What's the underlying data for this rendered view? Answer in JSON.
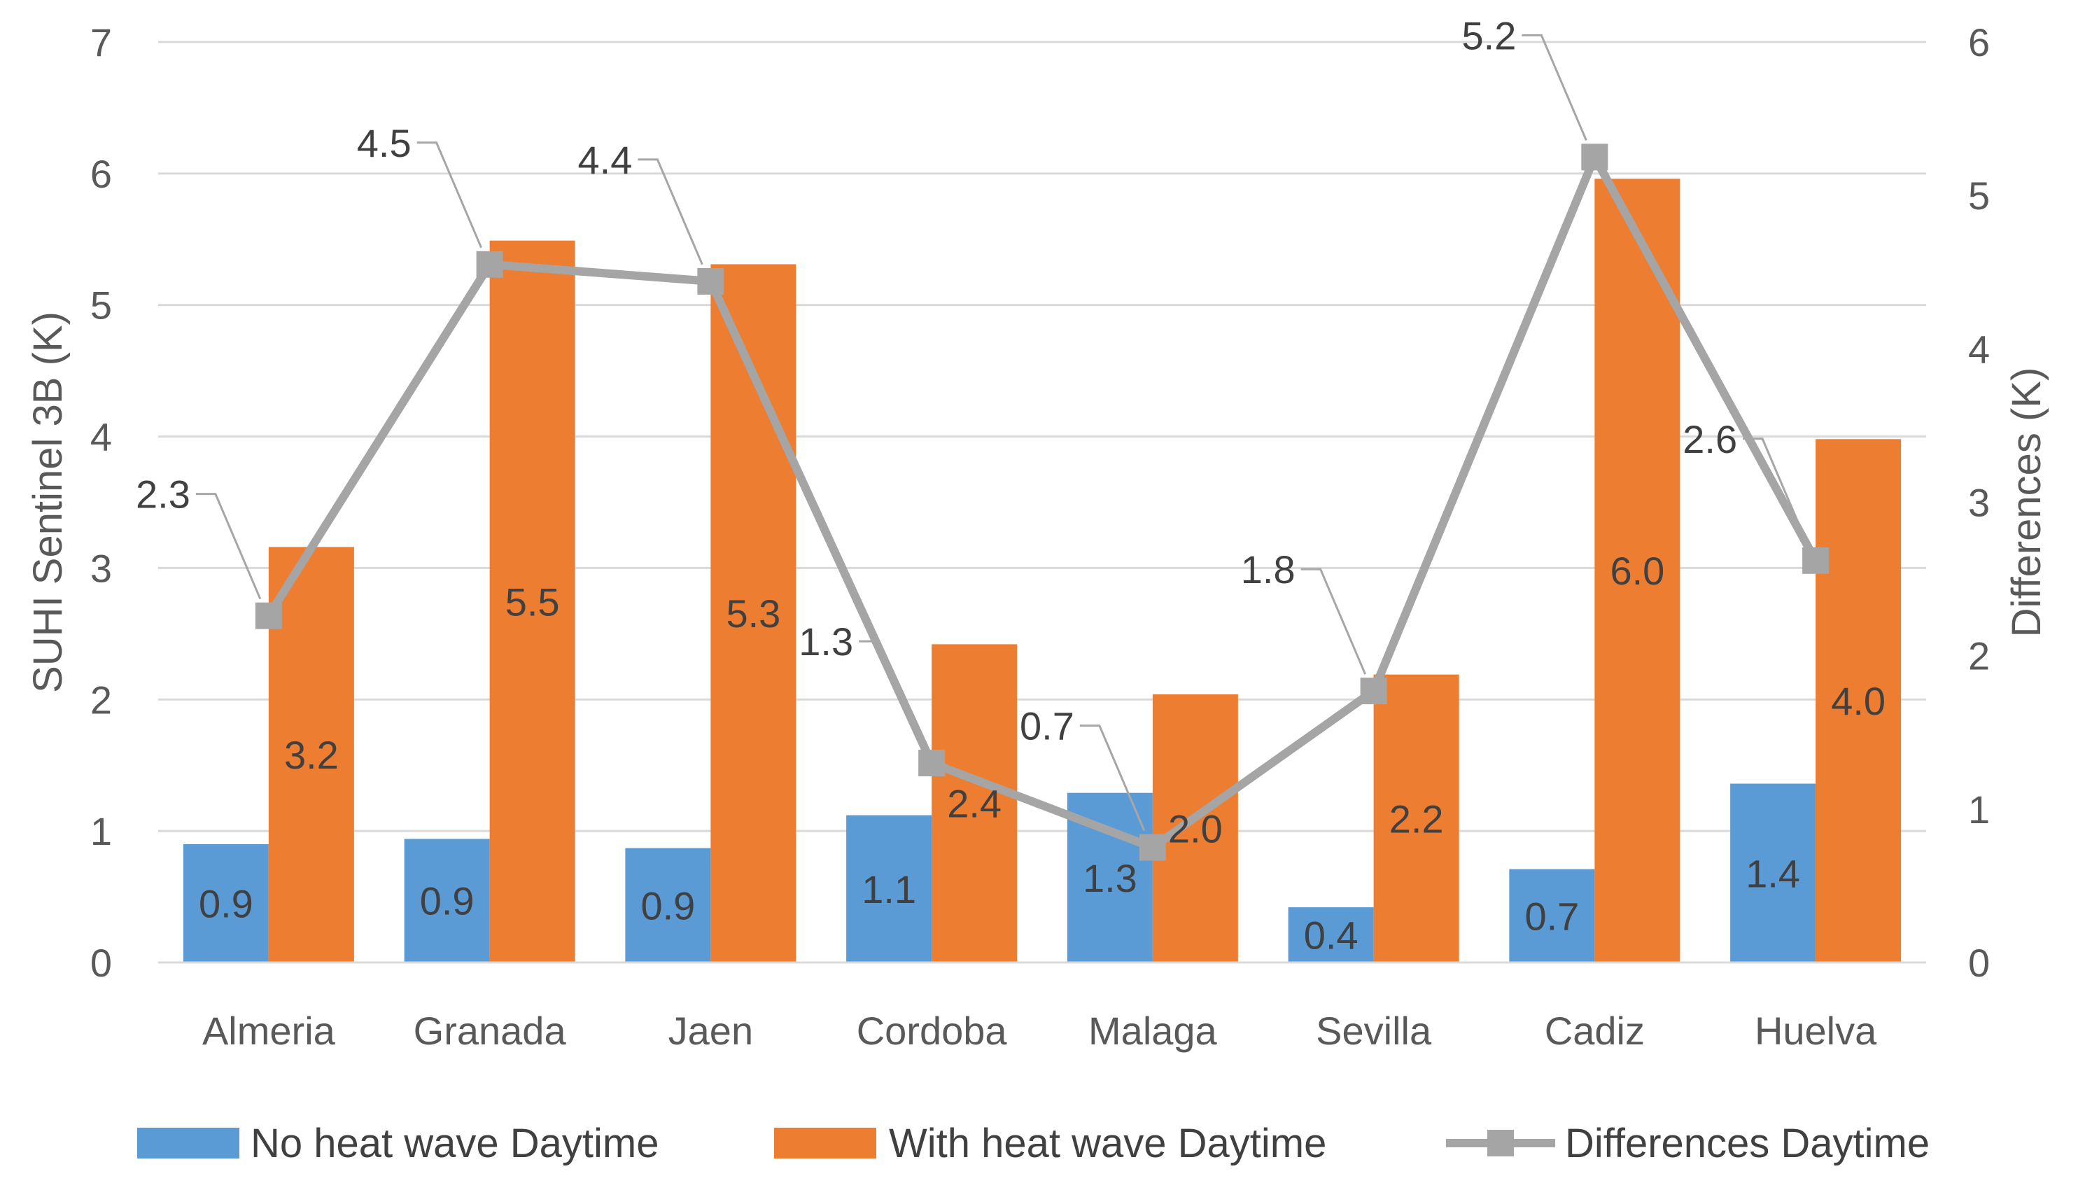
{
  "chart_data": {
    "type": "bar",
    "categories": [
      "Almeria",
      "Granada",
      "Jaen",
      "Cordoba",
      "Malaga",
      "Sevilla",
      "Cadiz",
      "Huelva"
    ],
    "series": [
      {
        "name": "No heat wave Daytime",
        "type": "bar",
        "axis": "left",
        "color": "#5B9BD5",
        "values": [
          0.9,
          0.94,
          0.87,
          1.12,
          1.29,
          0.42,
          0.71,
          1.36
        ],
        "labels": [
          "0.9",
          "0.9",
          "0.9",
          "1.1",
          "1.3",
          "0.4",
          "0.7",
          "1.4"
        ]
      },
      {
        "name": "With heat wave Daytime",
        "type": "bar",
        "axis": "left",
        "color": "#ED7D31",
        "values": [
          3.16,
          5.49,
          5.31,
          2.42,
          2.04,
          2.19,
          5.96,
          3.98
        ],
        "labels": [
          "3.2",
          "5.5",
          "5.3",
          "2.4",
          "2.0",
          "2.2",
          "6.0",
          "4.0"
        ]
      },
      {
        "name": "Differences Daytime",
        "type": "line",
        "axis": "right",
        "color": "#A5A5A5",
        "values": [
          2.26,
          4.55,
          4.44,
          1.3,
          0.75,
          1.77,
          5.25,
          2.62
        ],
        "labels": [
          "2.3",
          "4.5",
          "4.4",
          "1.3",
          "0.7",
          "1.8",
          "5.2",
          "2.6"
        ]
      }
    ],
    "ylabel": "SUHI Sentinel 3B (K)",
    "ylim": [
      0,
      7
    ],
    "yticks": [
      "0",
      "1",
      "2",
      "3",
      "4",
      "5",
      "6",
      "7"
    ],
    "y2label": "Differences (K)",
    "y2lim": [
      0,
      6
    ],
    "y2ticks": [
      "0",
      "1",
      "2",
      "3",
      "4",
      "5",
      "6"
    ],
    "grid": true,
    "legend": "bottom",
    "gridColor": "#D9D9D9",
    "lineMarker": "square"
  }
}
